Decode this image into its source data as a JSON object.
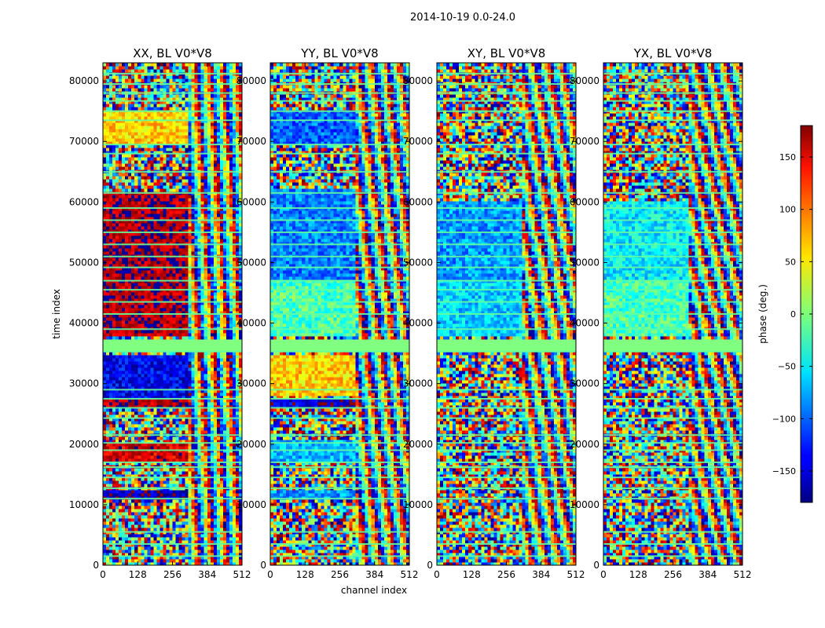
{
  "figure_title": "2014-10-19 0.0-24.0",
  "chart_data": {
    "type": "heatmap",
    "suptitle": "2014-10-19 0.0-24.0",
    "xlabel": "channel index",
    "ylabel": "time index",
    "xlim": [
      0,
      512
    ],
    "ylim": [
      0,
      83000
    ],
    "xticks": [
      0,
      128,
      256,
      384,
      512
    ],
    "yticks": [
      0,
      10000,
      20000,
      30000,
      40000,
      50000,
      60000,
      70000,
      80000
    ],
    "colormap": "jet",
    "colorbar": {
      "label": "phase (deg.)",
      "min": -180,
      "max": 180,
      "ticks": [
        -150,
        -100,
        -50,
        0,
        50,
        100,
        150
      ]
    },
    "panels": [
      {
        "title": "XX, BL V0*V8",
        "signal_channel_max": 320,
        "dominant_phase": [
          {
            "t0": 11000,
            "t1": 12700,
            "phase": -160
          },
          {
            "t0": 17000,
            "t1": 20000,
            "phase": 150
          },
          {
            "t0": 26000,
            "t1": 27500,
            "phase": 160
          },
          {
            "t0": 27500,
            "t1": 35000,
            "phase": -140
          },
          {
            "t0": 38000,
            "t1": 61500,
            "phase": 165
          },
          {
            "t0": 69500,
            "t1": 75000,
            "phase": 60
          }
        ]
      },
      {
        "title": "YY, BL V0*V8",
        "signal_channel_max": 320,
        "dominant_phase": [
          {
            "t0": 11000,
            "t1": 12700,
            "phase": -80
          },
          {
            "t0": 17000,
            "t1": 20500,
            "phase": -70
          },
          {
            "t0": 26000,
            "t1": 27500,
            "phase": -150
          },
          {
            "t0": 28000,
            "t1": 35000,
            "phase": 60
          },
          {
            "t0": 38000,
            "t1": 47000,
            "phase": -20
          },
          {
            "t0": 47000,
            "t1": 62000,
            "phase": -90
          },
          {
            "t0": 69500,
            "t1": 75000,
            "phase": -100
          }
        ]
      },
      {
        "title": "XY, BL V0*V8",
        "signal_channel_max": 320,
        "dominant_phase": [
          {
            "t0": 38000,
            "t1": 47000,
            "phase": -60
          },
          {
            "t0": 47000,
            "t1": 60000,
            "phase": -80
          }
        ]
      },
      {
        "title": "YX, BL V0*V8",
        "signal_channel_max": 320,
        "dominant_phase": [
          {
            "t0": 38000,
            "t1": 47000,
            "phase": -20
          },
          {
            "t0": 47000,
            "t1": 60000,
            "phase": -50
          }
        ]
      }
    ],
    "flagged_time_ranges": [
      [
        35300,
        37500
      ]
    ],
    "gap_rows": [
      1500,
      3500,
      5500,
      11000,
      12700,
      14500,
      16200,
      17000,
      19000,
      20200,
      21500,
      24300,
      26000,
      27500,
      29000,
      35300,
      39000,
      41500,
      43500,
      45500,
      47000,
      49200,
      51000,
      53000,
      55000,
      57000,
      59000,
      61500,
      65000,
      68000,
      69500,
      73500,
      75000,
      76700,
      78000,
      79500,
      81200
    ]
  }
}
